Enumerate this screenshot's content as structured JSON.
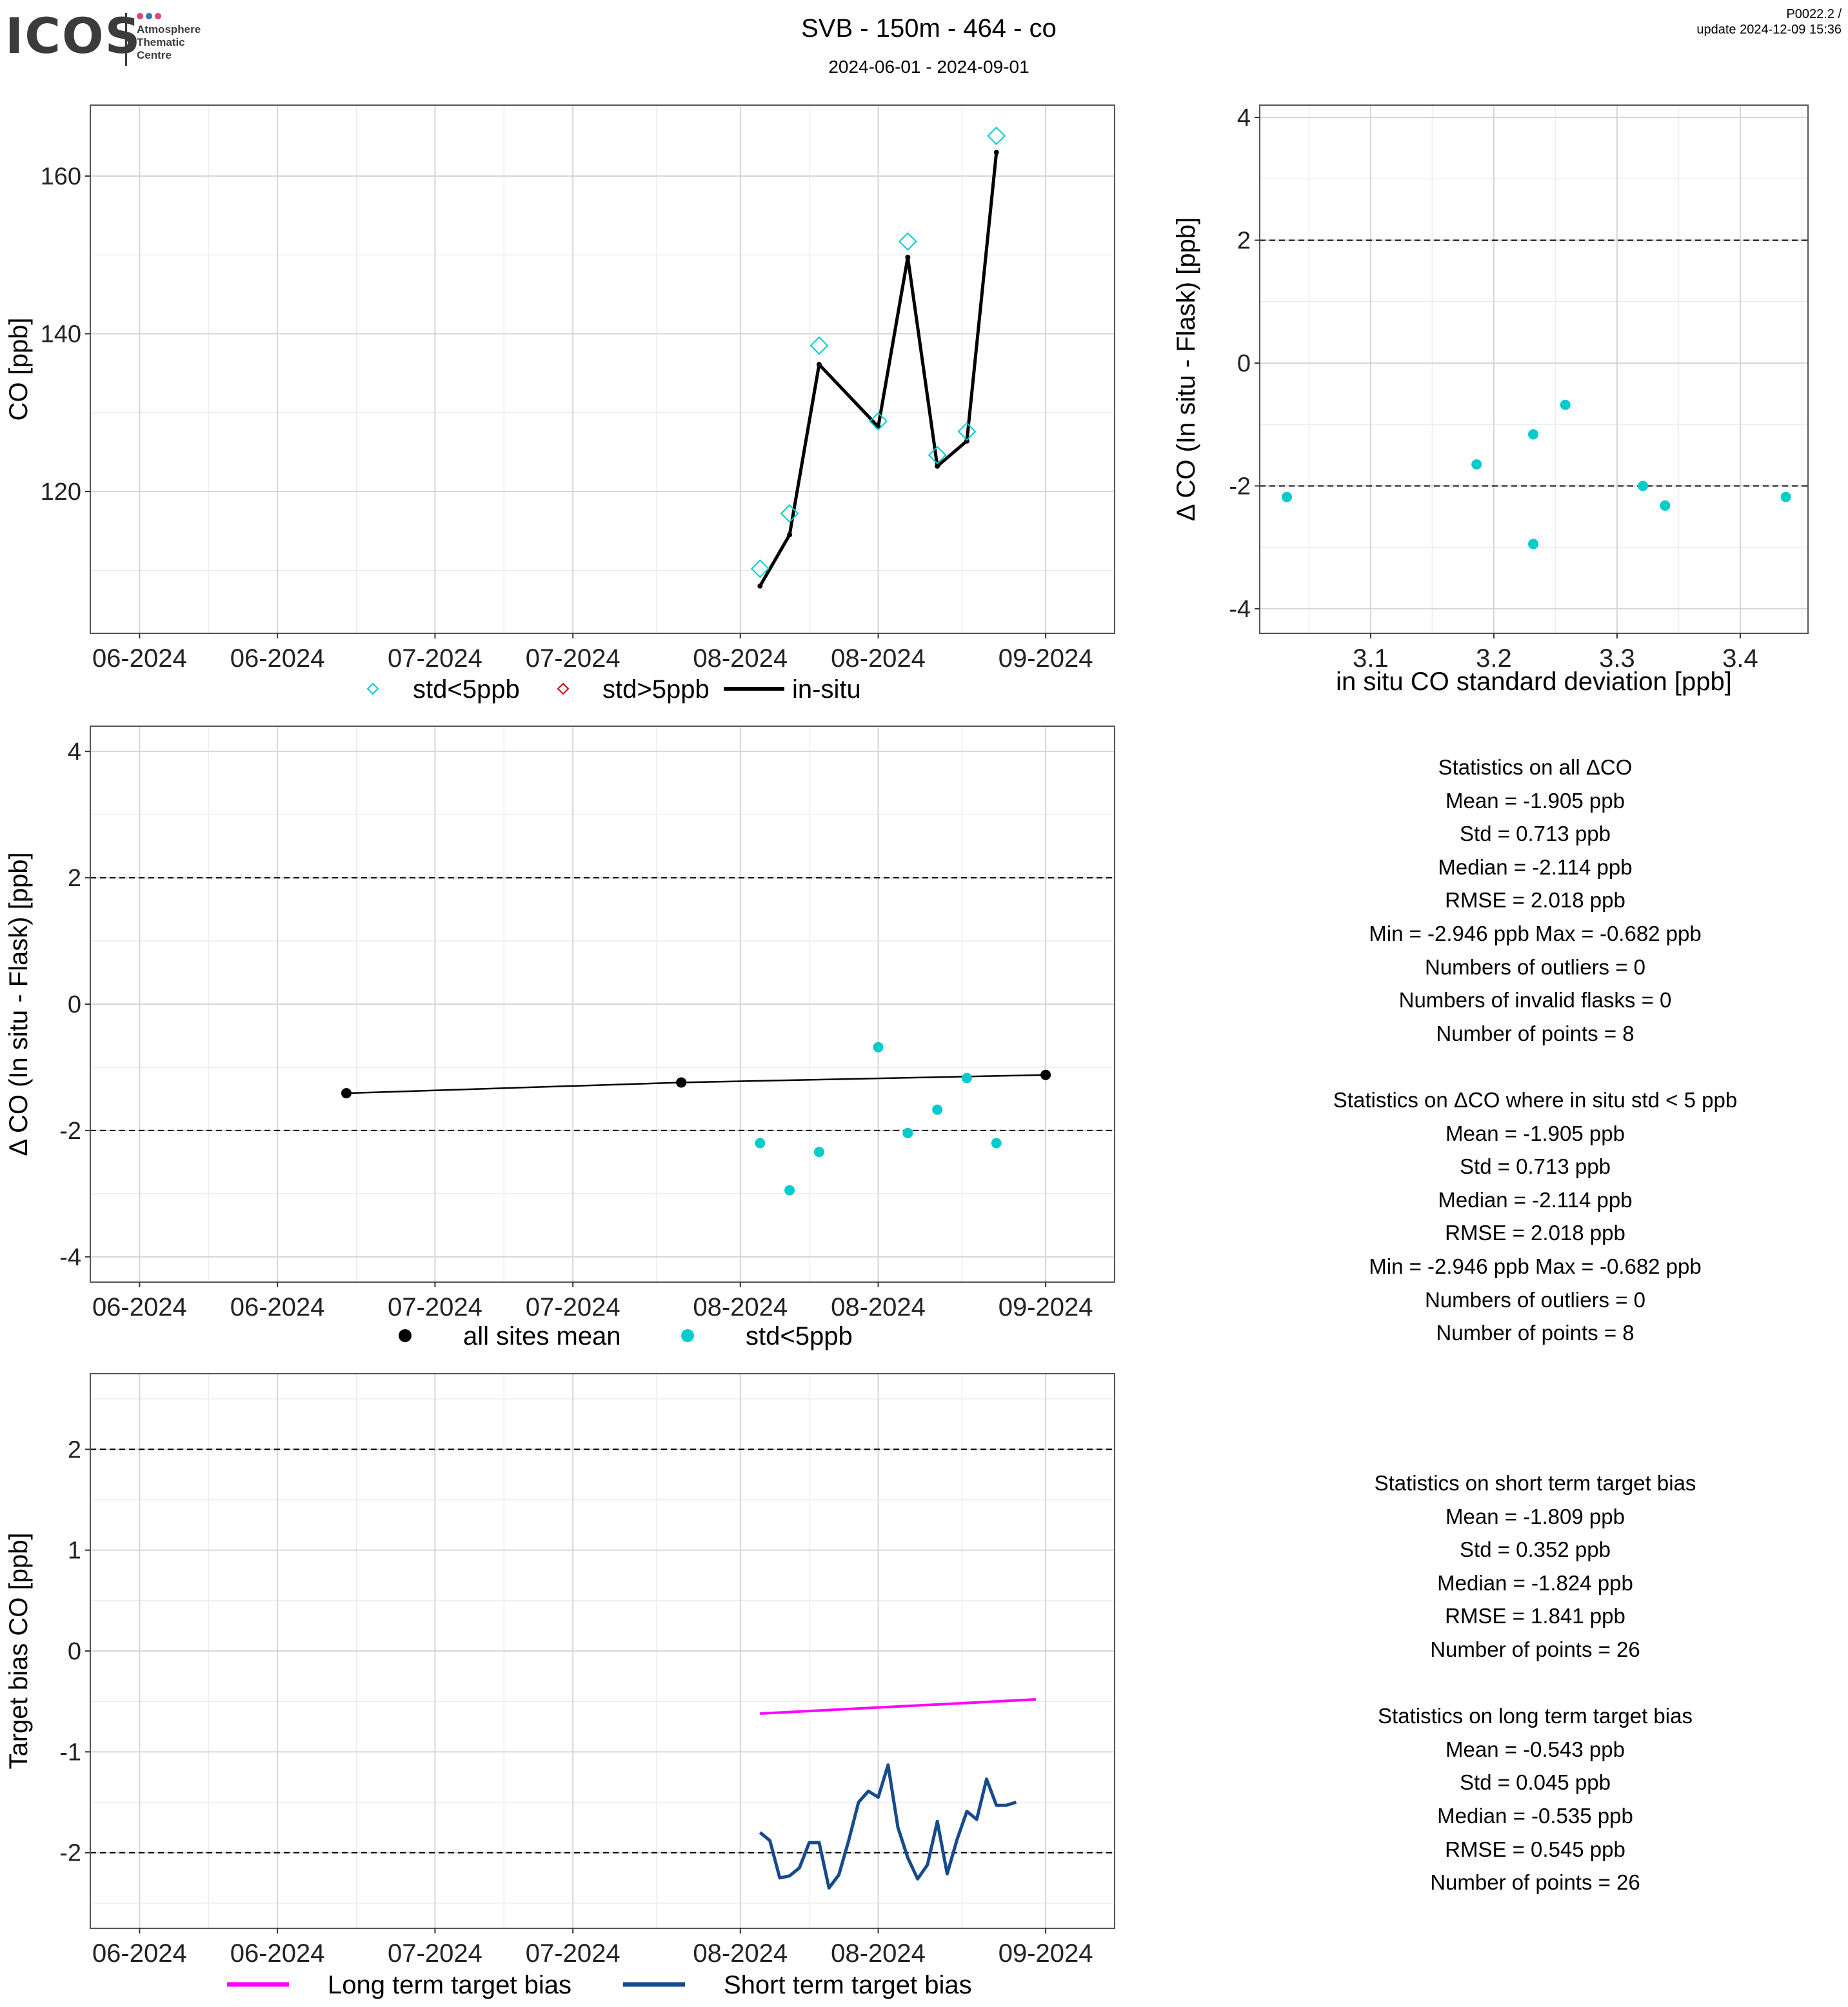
{
  "header": {
    "logo_text": "ICOS",
    "logo_subtitle": [
      "Atmosphere",
      "Thematic",
      "Centre"
    ],
    "logo_dot_colors": [
      "#e8417f",
      "#2f7ac3",
      "#e8417f"
    ],
    "title": "SVB - 150m - 464 - co",
    "subtitle": "2024-06-01 - 2024-09-01",
    "version_line1": "P0022.2 /",
    "version_line2": "update  2024-12-09 15:36"
  },
  "colors": {
    "flask_std_lt5": "#00cccc",
    "flask_std_gt5": "#cc0000",
    "insitu": "#000000",
    "long_term": "#ff00ff",
    "short_term": "#174a8b"
  },
  "chart_data": [
    {
      "id": "co_timeseries",
      "type": "line",
      "ylabel": "CO [ppb]",
      "xlabel": "",
      "xlim": [
        "2024-05-27",
        "2024-09-08"
      ],
      "ylim": [
        102,
        169
      ],
      "x_ticks": [
        {
          "date": "2024-06-01",
          "label": "06-2024"
        },
        {
          "date": "2024-06-15",
          "label": "06-2024"
        },
        {
          "date": "2024-07-01",
          "label": "07-2024"
        },
        {
          "date": "2024-07-15",
          "label": "07-2024"
        },
        {
          "date": "2024-08-01",
          "label": "08-2024"
        },
        {
          "date": "2024-08-15",
          "label": "08-2024"
        },
        {
          "date": "2024-09-01",
          "label": "09-2024"
        }
      ],
      "y_ticks": [
        120,
        140,
        160
      ],
      "grid": true,
      "legend": {
        "position": "bottom",
        "entries": [
          "std<5ppb",
          "std>5ppb",
          "in-situ"
        ]
      },
      "series": [
        {
          "name": "std<5ppb",
          "kind": "diamond",
          "x": [
            "2024-08-03",
            "2024-08-06",
            "2024-08-09",
            "2024-08-15",
            "2024-08-18",
            "2024-08-21",
            "2024-08-24",
            "2024-08-27"
          ],
          "values": [
            110.2,
            117.2,
            138.5,
            128.9,
            151.7,
            124.6,
            127.6,
            165.1
          ]
        },
        {
          "name": "in-situ",
          "kind": "line",
          "x": [
            "2024-08-03",
            "2024-08-06",
            "2024-08-09",
            "2024-08-15",
            "2024-08-18",
            "2024-08-21",
            "2024-08-24",
            "2024-08-27"
          ],
          "values": [
            108.0,
            114.5,
            136.1,
            128.2,
            149.7,
            123.2,
            126.4,
            163.0
          ]
        }
      ]
    },
    {
      "id": "delta_vs_std",
      "type": "scatter",
      "xlabel": "in situ CO standard deviation [ppb]",
      "ylabel": "Δ CO (In situ - Flask) [ppb]",
      "xlim": [
        3.01,
        3.455
      ],
      "ylim": [
        -4.4,
        4.2
      ],
      "x_ticks": [
        3.1,
        3.2,
        3.3,
        3.4
      ],
      "y_ticks": [
        -4,
        -2,
        0,
        2,
        4
      ],
      "hlines": [
        2,
        -2
      ],
      "grid": true,
      "series": [
        {
          "name": "std<5ppb",
          "x": [
            3.032,
            3.186,
            3.232,
            3.258,
            3.232,
            3.321,
            3.339,
            3.437
          ],
          "values": [
            -2.18,
            -1.65,
            -1.16,
            -0.68,
            -2.946,
            -2.0,
            -2.32,
            -2.18
          ]
        }
      ]
    },
    {
      "id": "delta_timeseries",
      "type": "scatter",
      "ylabel": "Δ CO (In situ - Flask) [ppb]",
      "xlabel": "",
      "xlim": [
        "2024-05-27",
        "2024-09-08"
      ],
      "ylim": [
        -4.4,
        4.4
      ],
      "x_ticks": [
        {
          "date": "2024-06-01",
          "label": "06-2024"
        },
        {
          "date": "2024-06-15",
          "label": "06-2024"
        },
        {
          "date": "2024-07-01",
          "label": "07-2024"
        },
        {
          "date": "2024-07-15",
          "label": "07-2024"
        },
        {
          "date": "2024-08-01",
          "label": "08-2024"
        },
        {
          "date": "2024-08-15",
          "label": "08-2024"
        },
        {
          "date": "2024-09-01",
          "label": "09-2024"
        }
      ],
      "y_ticks": [
        -4,
        -2,
        0,
        2,
        4
      ],
      "hlines": [
        2,
        -2
      ],
      "grid": true,
      "legend": {
        "position": "bottom",
        "entries": [
          "all sites mean",
          "std<5ppb"
        ]
      },
      "series": [
        {
          "name": "all sites mean",
          "kind": "line-points",
          "x": [
            "2024-06-22",
            "2024-07-26",
            "2024-09-01"
          ],
          "values": [
            -1.41,
            -1.24,
            -1.12
          ]
        },
        {
          "name": "std<5ppb",
          "kind": "points",
          "x": [
            "2024-08-03",
            "2024-08-06",
            "2024-08-09",
            "2024-08-15",
            "2024-08-18",
            "2024-08-21",
            "2024-08-24",
            "2024-08-27"
          ],
          "values": [
            -2.2,
            -2.946,
            -2.34,
            -0.682,
            -2.04,
            -1.67,
            -1.17,
            -2.2
          ]
        }
      ]
    },
    {
      "id": "target_bias",
      "type": "line",
      "ylabel": "Target bias CO [ppb]",
      "xlabel": "",
      "xlim": [
        "2024-05-27",
        "2024-09-08"
      ],
      "ylim": [
        -2.75,
        2.75
      ],
      "x_ticks": [
        {
          "date": "2024-06-01",
          "label": "06-2024"
        },
        {
          "date": "2024-06-15",
          "label": "06-2024"
        },
        {
          "date": "2024-07-01",
          "label": "07-2024"
        },
        {
          "date": "2024-07-15",
          "label": "07-2024"
        },
        {
          "date": "2024-08-01",
          "label": "08-2024"
        },
        {
          "date": "2024-08-15",
          "label": "08-2024"
        },
        {
          "date": "2024-09-01",
          "label": "09-2024"
        }
      ],
      "y_ticks": [
        -2,
        -1,
        0,
        1,
        2
      ],
      "hlines": [
        2,
        -2
      ],
      "grid": true,
      "legend": {
        "position": "bottom",
        "entries": [
          "Long term target bias",
          "Short term target bias"
        ]
      },
      "series": [
        {
          "name": "Long term target bias",
          "x": [
            "2024-08-03",
            "2024-08-31"
          ],
          "values": [
            -0.62,
            -0.48
          ]
        },
        {
          "name": "Short term target bias",
          "x": [
            "2024-08-03",
            "2024-08-04",
            "2024-08-05",
            "2024-08-06",
            "2024-08-07",
            "2024-08-08",
            "2024-08-09",
            "2024-08-10",
            "2024-08-11",
            "2024-08-12",
            "2024-08-13",
            "2024-08-14",
            "2024-08-15",
            "2024-08-16",
            "2024-08-17",
            "2024-08-18",
            "2024-08-19",
            "2024-08-20",
            "2024-08-21",
            "2024-08-22",
            "2024-08-23",
            "2024-08-24",
            "2024-08-25",
            "2024-08-26",
            "2024-08-27",
            "2024-08-28",
            "2024-08-29"
          ],
          "values": [
            -1.8,
            -1.88,
            -2.25,
            -2.23,
            -2.15,
            -1.9,
            -1.9,
            -2.35,
            -2.22,
            -1.88,
            -1.5,
            -1.39,
            -1.45,
            -1.13,
            -1.75,
            -2.05,
            -2.26,
            -2.12,
            -1.69,
            -2.21,
            -1.87,
            -1.59,
            -1.67,
            -1.27,
            -1.53,
            -1.53,
            -1.5
          ]
        }
      ]
    }
  ],
  "stats_all": [
    "Statistics on all ΔCO",
    "Mean =  -1.905 ppb",
    "Std =  0.713 ppb",
    "Median =  -2.114 ppb",
    "RMSE =  2.018 ppb",
    "Min =  -2.946 ppb Max =  -0.682 ppb",
    "Numbers of outliers =  0",
    "Numbers of invalid flasks =  0",
    "Number of points =  8",
    "",
    "Statistics on ΔCO where in situ std < 5 ppb",
    "Mean =  -1.905 ppb",
    "Std =  0.713 ppb",
    "Median =  -2.114 ppb",
    "RMSE =  2.018 ppb",
    "Min =  -2.946 ppb Max =  -0.682 ppb",
    "Numbers of outliers =  0",
    "Number of points =  8"
  ],
  "stats_target": [
    "Statistics on short term target bias",
    "Mean =  -1.809 ppb",
    "Std =  0.352 ppb",
    "Median =  -1.824 ppb",
    "RMSE =  1.841 ppb",
    "Number of points =  26",
    "",
    "Statistics on long term target bias",
    "Mean =  -0.543 ppb",
    "Std =  0.045 ppb",
    "Median =  -0.535 ppb",
    "RMSE =  0.545 ppb",
    "Number of points =  26"
  ]
}
